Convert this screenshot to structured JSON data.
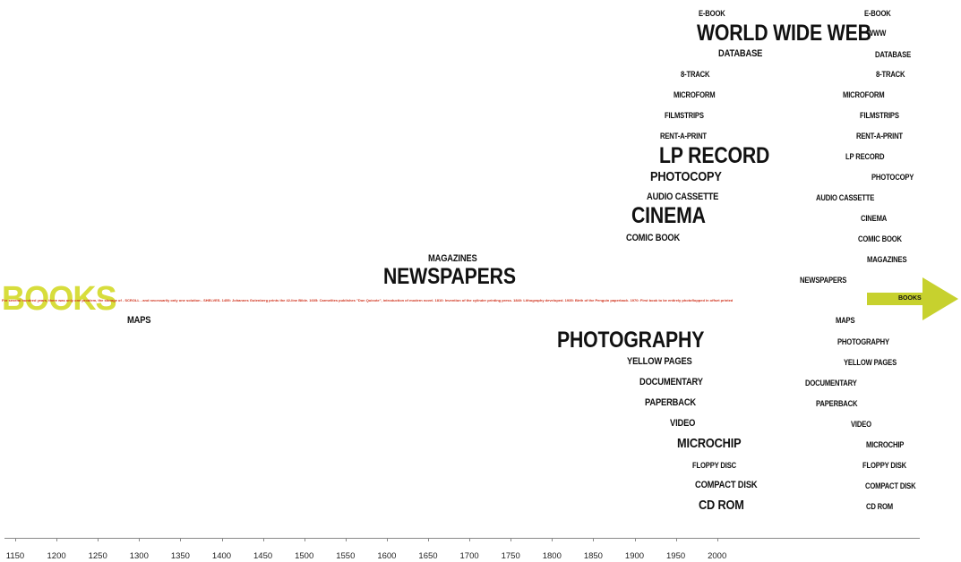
{
  "books": {
    "title": "BOOKS",
    "arrow_label": "BOOKS",
    "timeline_text": "For several hundred years, there was only one problem, the storage of - SCROLL - and necessarily only one solution - SHELVES. 1455: Johannes Gutenberg prints the 42-line Bible. 1605: Carmelites publishes \"Don Quixote\", introduction of modern novel. 1810: Invention of the cylinder printing press. 1840: Lithography developed. 1935: Birth of the Penguin paperback. 1970: First book to be entirely photoflopped in offset printed"
  },
  "media_left": [
    {
      "label": "MAGAZINES"
    },
    {
      "label": "NEWSPAPERS"
    },
    {
      "label": "MAPS"
    }
  ],
  "media_upper": [
    {
      "label": "E-BOOK",
      "right": "E-BOOK"
    },
    {
      "label": "WORLD WIDE WEB",
      "right": "WWW"
    },
    {
      "label": "DATABASE",
      "right": "DATABASE"
    },
    {
      "label": "8-TRACK",
      "right": "8-TRACK"
    },
    {
      "label": "MICROFORM",
      "right": "MICROFORM"
    },
    {
      "label": "FILMSTRIPS",
      "right": "FILMSTRIPS"
    },
    {
      "label": "RENT-A-PRINT",
      "right": "RENT-A-PRINT"
    },
    {
      "label": "LP RECORD",
      "right": "LP RECORD"
    },
    {
      "label": "PHOTOCOPY",
      "right": "PHOTOCOPY"
    },
    {
      "label": "AUDIO CASSETTE",
      "right": "AUDIO CASSETTE"
    },
    {
      "label": "CINEMA",
      "right": "CINEMA"
    },
    {
      "label": "COMIC BOOK",
      "right": "COMIC BOOK"
    },
    {
      "label": "MAGAZINES",
      "right": "MAGAZINES"
    },
    {
      "label": "NEWSPAPERS",
      "right": "NEWSPAPERS"
    }
  ],
  "media_lower": [
    {
      "label": "MAPS",
      "right": "MAPS"
    },
    {
      "label": "PHOTOGRAPHY",
      "right": "PHOTOGRAPHY"
    },
    {
      "label": "YELLOW PAGES",
      "right": "YELLOW PAGES"
    },
    {
      "label": "DOCUMENTARY",
      "right": "DOCUMENTARY"
    },
    {
      "label": "PAPERBACK",
      "right": "PAPERBACK"
    },
    {
      "label": "VIDEO",
      "right": "VIDEO"
    },
    {
      "label": "MICROCHIP",
      "right": "MICROCHIP"
    },
    {
      "label": "FLOPPY DISC",
      "right": "FLOPPY DISK"
    },
    {
      "label": "COMPACT DISK",
      "right": "COMPACT DISK"
    },
    {
      "label": "CD ROM",
      "right": "CD ROM"
    }
  ],
  "timeline": {
    "years": [
      "1150",
      "1200",
      "1250",
      "1300",
      "1350",
      "1400",
      "1450",
      "1500",
      "1550",
      "1600",
      "1650",
      "1700",
      "1750",
      "1800",
      "1850",
      "1900",
      "1950",
      "2000"
    ]
  }
}
